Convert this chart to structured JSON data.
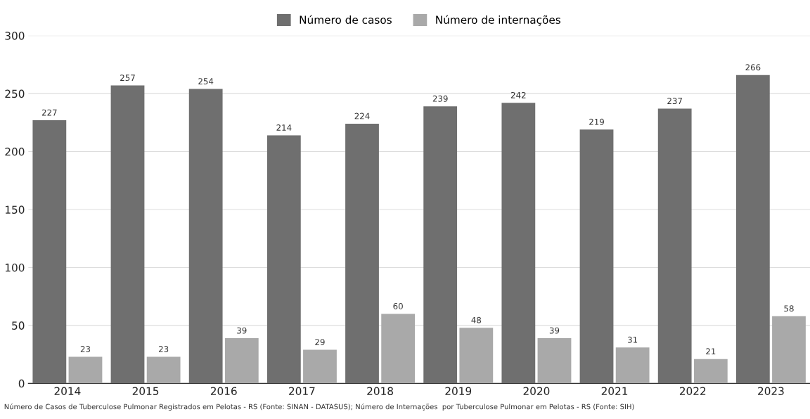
{
  "chart_data": {
    "type": "bar",
    "categories": [
      "2014",
      "2015",
      "2016",
      "2017",
      "2018",
      "2019",
      "2020",
      "2021",
      "2022",
      "2023"
    ],
    "series": [
      {
        "name": "Número de casos",
        "color": "#6f6f6f",
        "values": [
          227,
          257,
          254,
          214,
          224,
          239,
          242,
          219,
          237,
          266
        ]
      },
      {
        "name": "Número de internações",
        "color": "#a9a9a9",
        "values": [
          23,
          23,
          39,
          29,
          60,
          48,
          39,
          31,
          21,
          58
        ]
      }
    ],
    "ylim": [
      0,
      300
    ],
    "yticks": [
      0,
      50,
      100,
      150,
      200,
      250,
      300
    ],
    "grid": "y",
    "legend": "top",
    "data_labels": true,
    "annotations": [
      "Número de Casos de Tuberculose Pulmonar Registrados em Pelotas - RS (Fonte: SINAN - DATASUS); Número de Internações  por Tuberculose Pulmonar em Pelotas - RS (Fonte: SIH)"
    ]
  }
}
